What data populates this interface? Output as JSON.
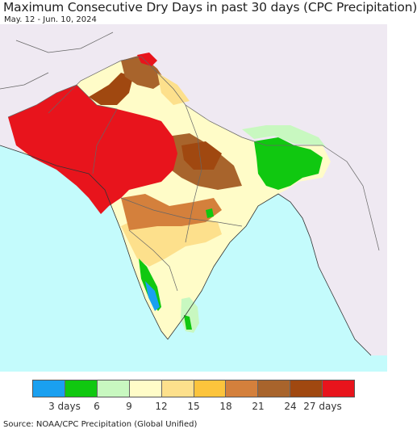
{
  "header": {
    "title": "Maximum Consecutive Dry Days in past 30 days (CPC Precipitation)",
    "date_range": "May. 12 - Jun. 10, 2024"
  },
  "legend": {
    "colors": [
      "#1aa0f0",
      "#10c810",
      "#c8f8c0",
      "#fffcc8",
      "#fde08c",
      "#fcc43c",
      "#d4803c",
      "#a8642c",
      "#a04810",
      "#e8141c"
    ],
    "labels": [
      "3 days",
      "6",
      "9",
      "12",
      "15",
      "18",
      "21",
      "24",
      "27 days"
    ]
  },
  "footer": {
    "source": "Source: NOAA/CPC Precipitation (Global Unified)"
  }
}
